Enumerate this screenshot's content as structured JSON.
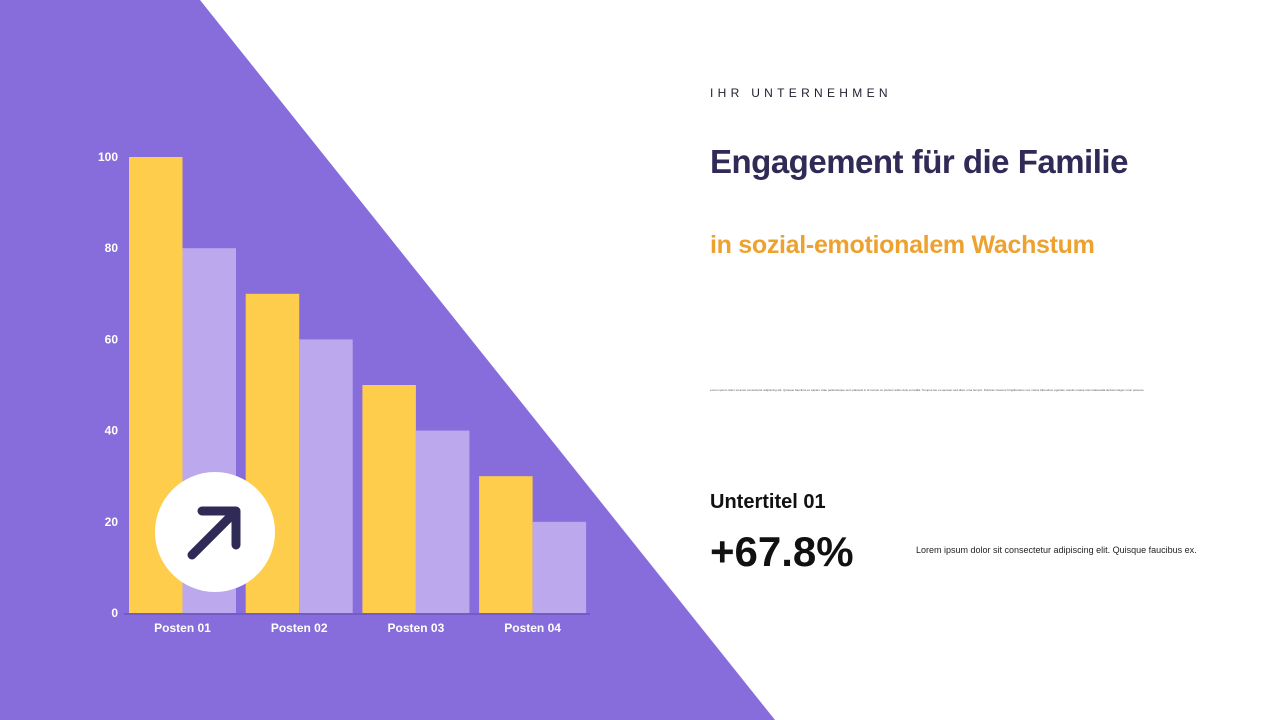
{
  "colors": {
    "background": "#ffffff",
    "accent_purple": "#876ddb",
    "series_primary": "#fecd4c",
    "series_secondary": "#bba8ed",
    "title": "#302a57",
    "subtitle": "#eda12e"
  },
  "header": {
    "eyebrow": "IHR UNTERNEHMEN",
    "title": "Engagement für die Familie",
    "subtitle": "in sozial-emotionalem Wachstum",
    "body_text": "Lorem ipsum dolor sit amet consectetur adipiscing elit. Quisque faucibus ex sapien vitae pellentesque sem placerat in id cursus mi pretium tellus duis convallis. Tempus leo eu aenean sed diam urna tempor. Pulvinar vivamus fringilla lacus nec metus bibendum egestas. Iaculis massa nisl malesuada lacinia integer nunc posuere."
  },
  "stat": {
    "label": "Untertitel 01",
    "value": "+67.8%",
    "description": "Lorem ipsum dolor sit consectetur adipiscing elit. Quisque faucibus ex."
  },
  "badge": {
    "icon": "arrow-up-right-icon"
  },
  "chart_data": {
    "type": "bar",
    "categories": [
      "Posten 01",
      "Posten 02",
      "Posten 03",
      "Posten 04"
    ],
    "series": [
      {
        "values": [
          100,
          70,
          50,
          30
        ]
      },
      {
        "values": [
          80,
          60,
          40,
          20
        ]
      }
    ],
    "ylim": [
      0,
      100
    ],
    "yticks": [
      0,
      20,
      40,
      60,
      80,
      100
    ],
    "grid": false,
    "legend": "none"
  }
}
